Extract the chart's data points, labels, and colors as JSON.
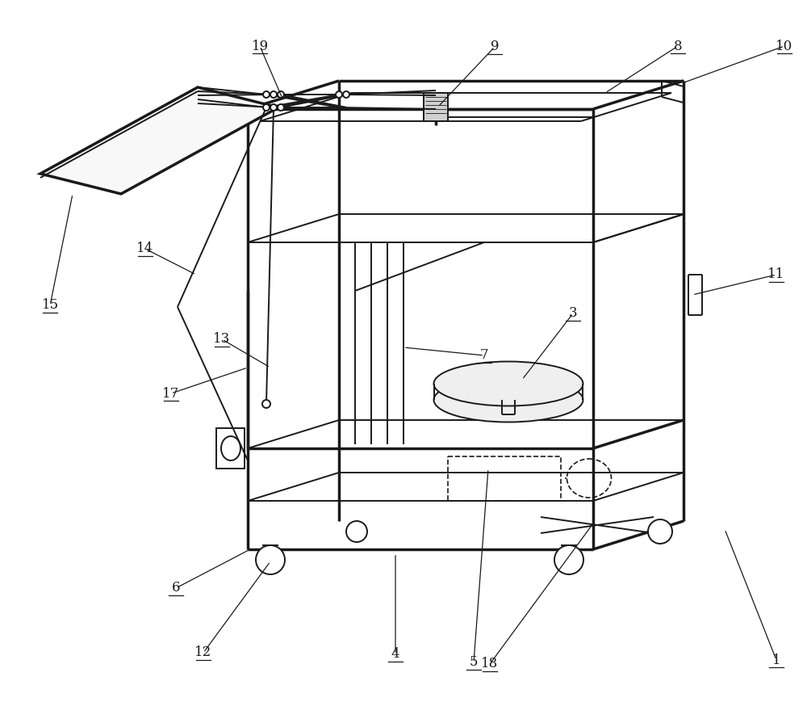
{
  "bg": "#ffffff",
  "lc": "#1a1a1a",
  "lw": 1.4,
  "tlw": 2.5,
  "dlw": 1.2,
  "fig_w": 10.0,
  "fig_h": 8.69,
  "labels": [
    [
      "1",
      930,
      165,
      968,
      810
    ],
    [
      "3",
      660,
      410,
      710,
      388
    ],
    [
      "4",
      490,
      168,
      490,
      800
    ],
    [
      "5",
      610,
      185,
      588,
      808
    ],
    [
      "6",
      305,
      175,
      220,
      720
    ],
    [
      "7",
      520,
      435,
      590,
      430
    ],
    [
      "8",
      790,
      108,
      838,
      55
    ],
    [
      "9",
      544,
      110,
      610,
      57
    ],
    [
      "10",
      930,
      108,
      970,
      57
    ],
    [
      "11",
      958,
      330,
      960,
      330
    ],
    [
      "12",
      318,
      168,
      252,
      795
    ],
    [
      "13",
      320,
      450,
      278,
      418
    ],
    [
      "14",
      243,
      355,
      182,
      305
    ],
    [
      "15",
      70,
      395,
      65,
      390
    ],
    [
      "17",
      292,
      478,
      213,
      480
    ],
    [
      "18",
      730,
      170,
      612,
      808
    ],
    [
      "19",
      342,
      107,
      322,
      55
    ]
  ]
}
